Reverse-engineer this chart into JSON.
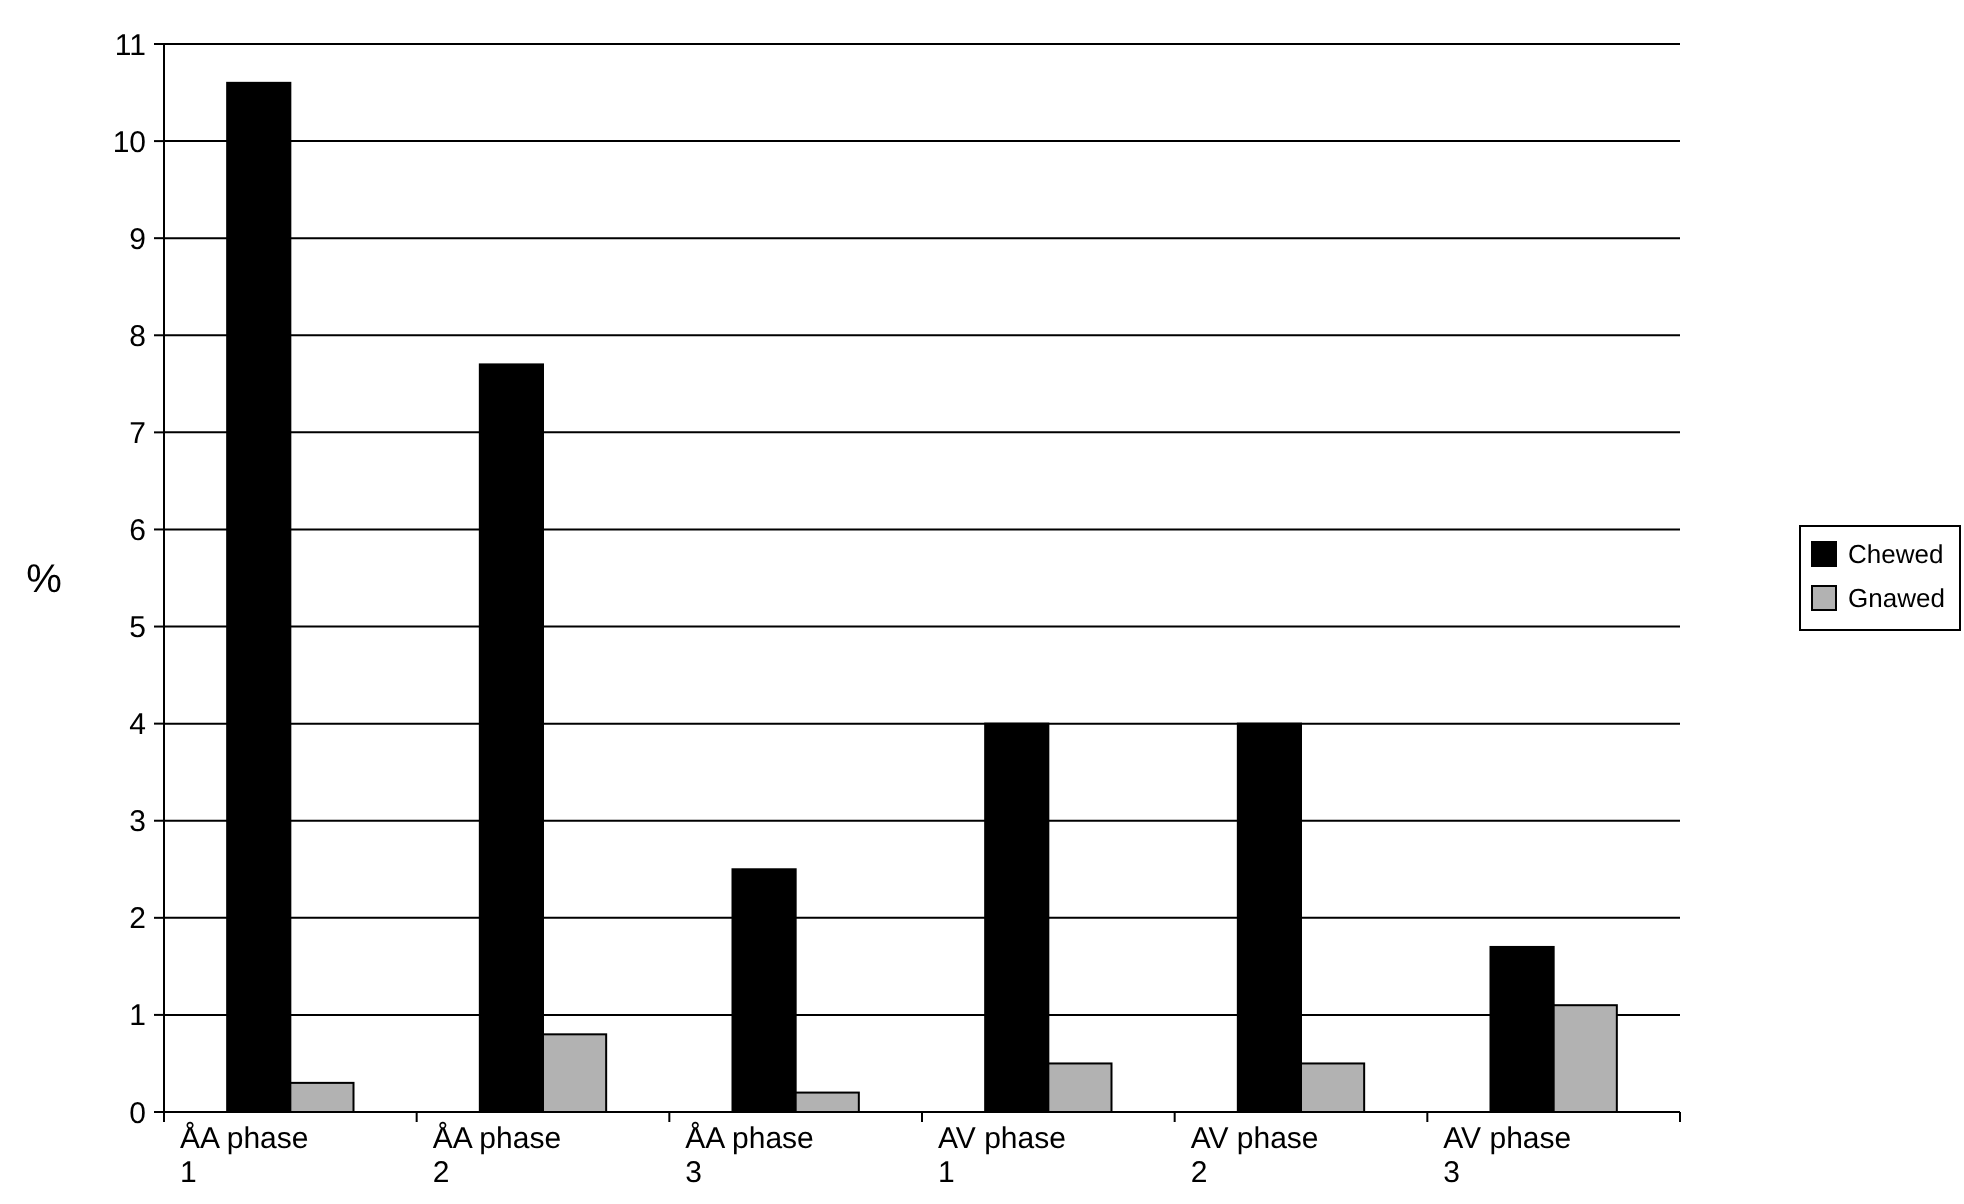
{
  "chart_data": {
    "type": "bar",
    "ylabel": "%",
    "categories": [
      "ÅA phase 1",
      "ÅA phase 2",
      "ÅA phase 3",
      "AV phase 1",
      "AV phase 2",
      "AV phase 3"
    ],
    "series": [
      {
        "name": "Chewed",
        "color": "#000000",
        "values": [
          10.6,
          7.7,
          2.5,
          4.0,
          4.0,
          1.7
        ]
      },
      {
        "name": "Gnawed",
        "color": "#b2b2b2",
        "values": [
          0.3,
          0.8,
          0.2,
          0.5,
          0.5,
          1.1
        ]
      }
    ],
    "ylim": [
      0,
      11
    ],
    "yticks": [
      0,
      1,
      2,
      3,
      4,
      5,
      6,
      7,
      8,
      9,
      10,
      11
    ],
    "grid": "y",
    "legend": "right"
  }
}
